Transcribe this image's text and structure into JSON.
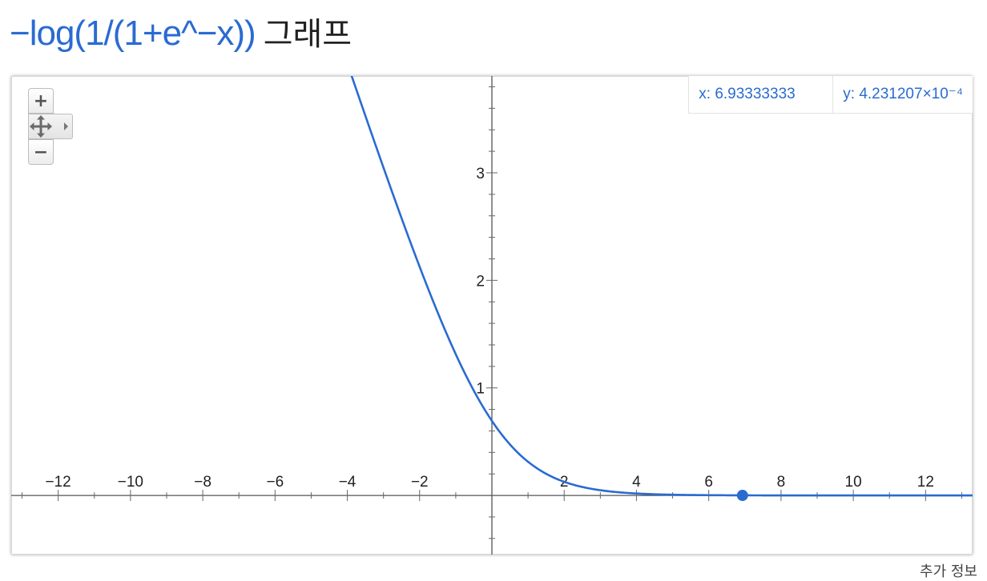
{
  "title": {
    "formula": "−log(1/(1+e^−x))",
    "suffix": "그래프",
    "formula_color": "#2a6bd1"
  },
  "readout": {
    "x_label": "x: 6.93333333",
    "y_label": "y: 4.231207×10⁻⁴"
  },
  "controls": {
    "zoom_in": "+",
    "zoom_out": "−",
    "pan_icon": "move-icon"
  },
  "footer": {
    "more_info": "추가 정보"
  },
  "chart_data": {
    "type": "line",
    "function": "-log(1/(1+exp(-x)))",
    "title": "−log(1/(1+e^−x)) 그래프",
    "xlim": [
      -13.3,
      13.3
    ],
    "ylim": [
      -0.55,
      3.9
    ],
    "x_ticks": [
      -12,
      -10,
      -8,
      -6,
      -4,
      -2,
      2,
      4,
      6,
      8,
      10,
      12
    ],
    "x_tick_labels": [
      "−12",
      "−10",
      "−8",
      "−6",
      "−4",
      "−2",
      "2",
      "4",
      "6",
      "8",
      "10",
      "12"
    ],
    "y_ticks": [
      1,
      2,
      3
    ],
    "y_tick_labels": [
      "1",
      "2",
      "3"
    ],
    "grid": false,
    "series_color": "#2a6bd1",
    "highlight_point": {
      "x": 6.93333333,
      "y": 0.0004231207
    }
  }
}
